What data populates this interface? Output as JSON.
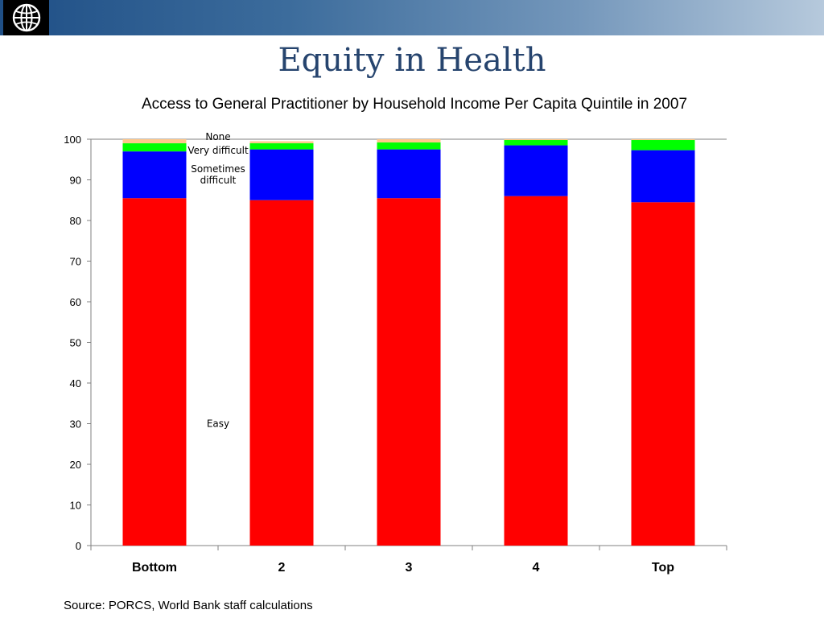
{
  "header": {
    "logo_icon": "world-bank-globe-icon",
    "band_colors": [
      "#1f4f86",
      "#b6c9dc"
    ]
  },
  "page_title": "Equity in Health",
  "source_note": "Source: PORCS, World Bank staff calculations",
  "chart_data": {
    "type": "bar",
    "stacked": true,
    "title": "Access to General Practitioner by Household Income Per Capita Quintile in 2007",
    "xlabel": "",
    "ylabel": "",
    "ylim": [
      0,
      100
    ],
    "yticks": [
      0,
      10,
      20,
      30,
      40,
      50,
      60,
      70,
      80,
      90,
      100
    ],
    "grid": false,
    "categories": [
      "Bottom",
      "2",
      "3",
      "4",
      "Top"
    ],
    "series": [
      {
        "name": "Easy",
        "color": "#ff0000",
        "values": [
          85.5,
          85.0,
          85.5,
          86.0,
          84.5
        ]
      },
      {
        "name": "Sometimes difficult",
        "color": "#0000ff",
        "values": [
          11.5,
          12.5,
          12.0,
          12.5,
          12.8
        ]
      },
      {
        "name": "Very difficult",
        "color": "#00ff00",
        "values": [
          2.0,
          1.5,
          1.7,
          1.3,
          2.5
        ]
      },
      {
        "name": "None",
        "color": "#ffc88a",
        "values": [
          1.0,
          0.5,
          0.8,
          0.2,
          0.2
        ]
      }
    ],
    "series_label_lines": {
      "Easy": [
        "Easy"
      ],
      "Sometimes difficult": [
        "Sometimes",
        "difficult"
      ],
      "Very difficult": [
        "Very difficult"
      ],
      "None": [
        "None"
      ]
    },
    "legend": "inline labels between first and second bars"
  }
}
